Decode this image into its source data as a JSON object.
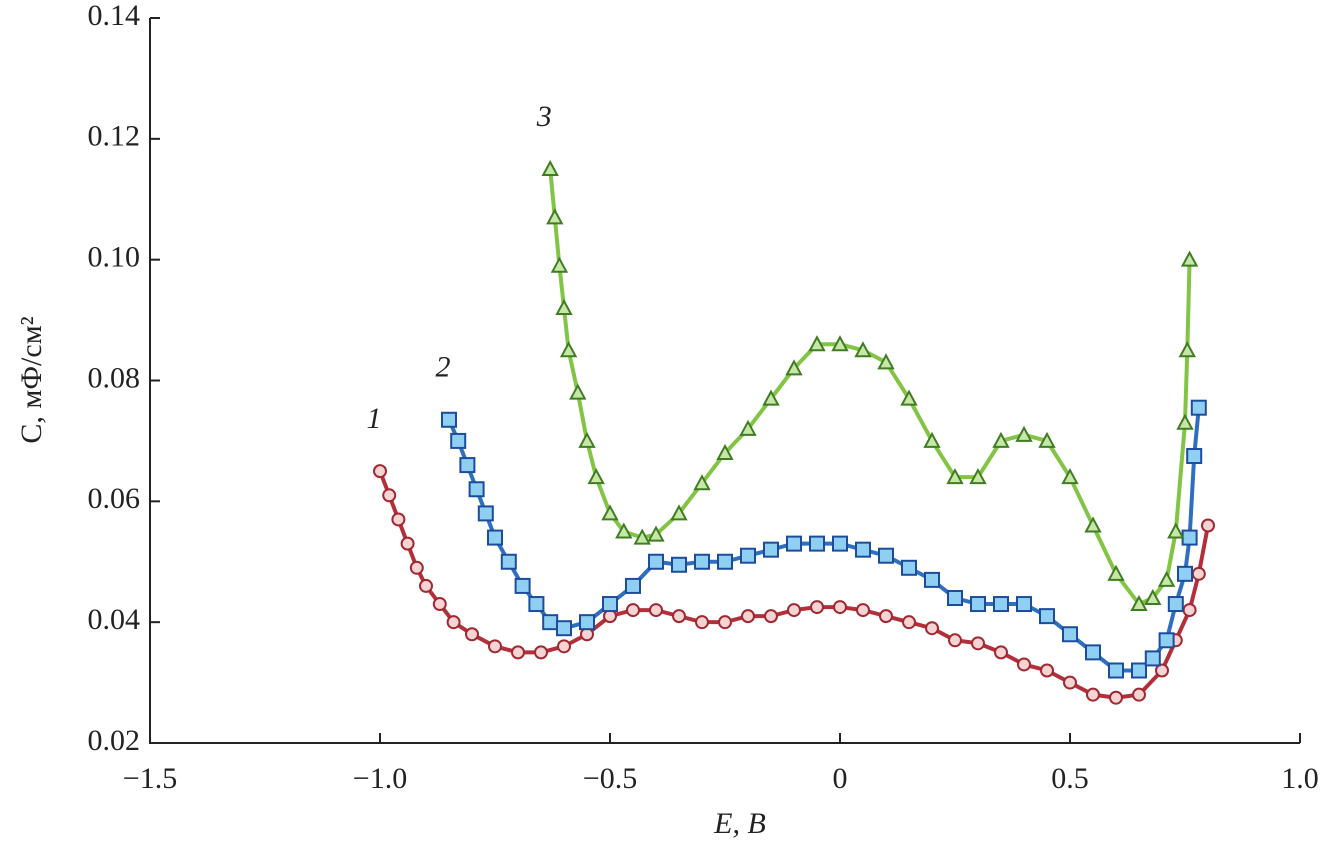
{
  "chart_data": {
    "type": "scatter",
    "xlabel": "E, В",
    "ylabel": "C, мФ/см²",
    "xlim": [
      -1.5,
      1.0
    ],
    "ylim": [
      0.02,
      0.14
    ],
    "xticks": [
      {
        "value": -1.5,
        "label": "−1.5"
      },
      {
        "value": -1.0,
        "label": "−1.0"
      },
      {
        "value": -0.5,
        "label": "−0.5"
      },
      0,
      0.5,
      {
        "value": 1.0,
        "label": "1.0"
      }
    ],
    "yticks": [
      0.02,
      0.04,
      0.06,
      0.08,
      {
        "value": 0.1,
        "label": "0.10"
      },
      0.12,
      0.14
    ],
    "series": [
      {
        "name": "1",
        "color": "#b3303a",
        "marker": "circle",
        "marker_fill": "#f6d4d4",
        "x": [
          -1.0,
          -0.98,
          -0.96,
          -0.94,
          -0.92,
          -0.9,
          -0.87,
          -0.84,
          -0.8,
          -0.75,
          -0.7,
          -0.65,
          -0.6,
          -0.55,
          -0.5,
          -0.45,
          -0.4,
          -0.35,
          -0.3,
          -0.25,
          -0.2,
          -0.15,
          -0.1,
          -0.05,
          0,
          0.05,
          0.1,
          0.15,
          0.2,
          0.25,
          0.3,
          0.35,
          0.4,
          0.45,
          0.5,
          0.55,
          0.6,
          0.65,
          0.7,
          0.73,
          0.76,
          0.78,
          0.8
        ],
        "values": [
          0.065,
          0.061,
          0.057,
          0.053,
          0.049,
          0.046,
          0.043,
          0.04,
          0.038,
          0.036,
          0.035,
          0.035,
          0.036,
          0.038,
          0.041,
          0.042,
          0.042,
          0.041,
          0.04,
          0.04,
          0.041,
          0.041,
          0.042,
          0.0425,
          0.0425,
          0.042,
          0.041,
          0.04,
          0.039,
          0.037,
          0.0365,
          0.035,
          0.033,
          0.032,
          0.03,
          0.028,
          0.0275,
          0.028,
          0.032,
          0.037,
          0.042,
          0.048,
          0.056
        ]
      },
      {
        "name": "2",
        "color": "#2f6fc0",
        "marker": "square",
        "marker_fill": "#8fd0f2",
        "x": [
          -0.85,
          -0.83,
          -0.81,
          -0.79,
          -0.77,
          -0.75,
          -0.72,
          -0.69,
          -0.66,
          -0.63,
          -0.6,
          -0.55,
          -0.5,
          -0.45,
          -0.4,
          -0.35,
          -0.3,
          -0.25,
          -0.2,
          -0.15,
          -0.1,
          -0.05,
          0,
          0.05,
          0.1,
          0.15,
          0.2,
          0.25,
          0.3,
          0.35,
          0.4,
          0.45,
          0.5,
          0.55,
          0.6,
          0.65,
          0.68,
          0.71,
          0.73,
          0.75,
          0.76,
          0.77,
          0.78
        ],
        "values": [
          0.0735,
          0.07,
          0.066,
          0.062,
          0.058,
          0.054,
          0.05,
          0.046,
          0.043,
          0.04,
          0.039,
          0.04,
          0.043,
          0.046,
          0.05,
          0.0495,
          0.05,
          0.05,
          0.051,
          0.052,
          0.053,
          0.053,
          0.053,
          0.052,
          0.051,
          0.049,
          0.047,
          0.044,
          0.043,
          0.043,
          0.043,
          0.041,
          0.038,
          0.035,
          0.032,
          0.032,
          0.034,
          0.037,
          0.043,
          0.048,
          0.054,
          0.0675,
          0.0755
        ]
      },
      {
        "name": "3",
        "color": "#82c444",
        "marker": "triangle",
        "marker_fill": "#c8e6a8",
        "x": [
          -0.63,
          -0.62,
          -0.61,
          -0.6,
          -0.59,
          -0.57,
          -0.55,
          -0.53,
          -0.5,
          -0.47,
          -0.43,
          -0.4,
          -0.35,
          -0.3,
          -0.25,
          -0.2,
          -0.15,
          -0.1,
          -0.05,
          0,
          0.05,
          0.1,
          0.15,
          0.2,
          0.25,
          0.3,
          0.35,
          0.4,
          0.45,
          0.5,
          0.55,
          0.6,
          0.65,
          0.68,
          0.71,
          0.73,
          0.75,
          0.755,
          0.76
        ],
        "values": [
          0.115,
          0.107,
          0.099,
          0.092,
          0.085,
          0.078,
          0.07,
          0.064,
          0.058,
          0.055,
          0.054,
          0.0545,
          0.058,
          0.063,
          0.068,
          0.072,
          0.077,
          0.082,
          0.086,
          0.086,
          0.085,
          0.083,
          0.077,
          0.07,
          0.064,
          0.064,
          0.07,
          0.071,
          0.07,
          0.064,
          0.056,
          0.048,
          0.043,
          0.044,
          0.047,
          0.055,
          0.073,
          0.085,
          0.1
        ]
      }
    ]
  }
}
